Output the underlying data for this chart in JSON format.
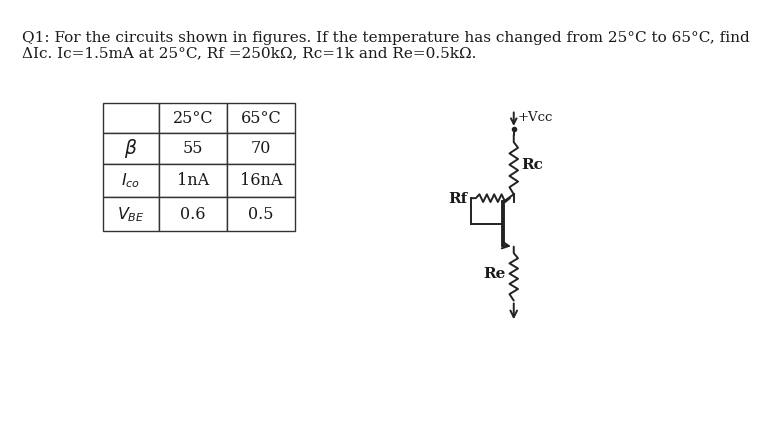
{
  "title_line1": "Q1: For the circuits shown in figures. If the temperature has changed from 25°C to 65°C, find",
  "title_line2": "ΔIc. Ic=1.5mA at 25°C, Rf =250kΩ, Rc=1k and Re=0.5kΩ.",
  "table_headers": [
    "",
    "25°C",
    "65°C"
  ],
  "table_rows": [
    [
      "β",
      "55",
      "70"
    ],
    [
      "Ico",
      "1nA",
      "16nA"
    ],
    [
      "VBE",
      "0.6",
      "0.5"
    ]
  ],
  "background_color": "#ffffff",
  "text_color": "#1a1a1a",
  "font_size_title": 11.0,
  "font_size_table": 11.5
}
